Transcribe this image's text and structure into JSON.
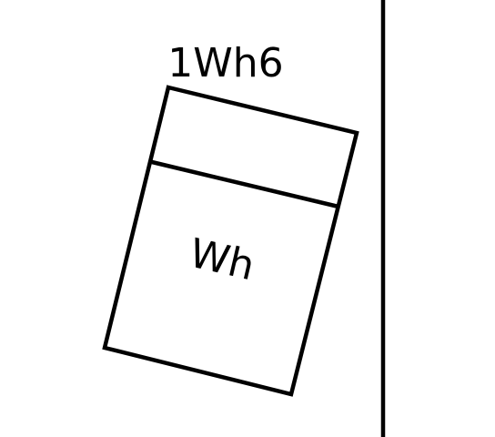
{
  "diagram": {
    "label_top": "1Wh6",
    "label_inner": "Wh",
    "colors": {
      "background": "#ffffff",
      "stroke": "#000000",
      "text": "#000000"
    }
  }
}
